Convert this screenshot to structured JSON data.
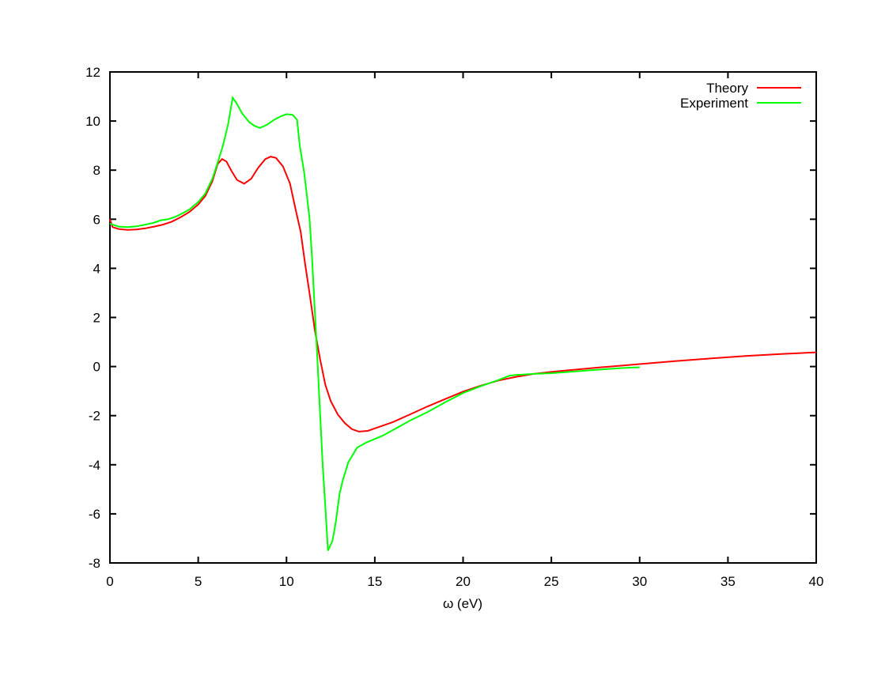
{
  "figure": {
    "background": "#ffffff",
    "border_color": "#000000",
    "tick_color": "#000000"
  },
  "chart_data": {
    "type": "line",
    "title": "",
    "xlabel": "ω (eV)",
    "ylabel": "",
    "xlim": [
      0,
      40
    ],
    "ylim": [
      -8,
      12
    ],
    "xticks": [
      0,
      5,
      10,
      15,
      20,
      25,
      30,
      35,
      40
    ],
    "yticks": [
      -8,
      -6,
      -4,
      -2,
      0,
      2,
      4,
      6,
      8,
      10,
      12
    ],
    "grid": false,
    "legend": {
      "position": "top-right-inside",
      "entries": [
        "Theory",
        "Experiment"
      ]
    },
    "series": [
      {
        "name": "Theory",
        "color": "#ff0000",
        "points": [
          [
            0,
            6.0
          ],
          [
            0.15,
            5.68
          ],
          [
            0.5,
            5.6
          ],
          [
            1,
            5.57
          ],
          [
            1.5,
            5.58
          ],
          [
            2,
            5.63
          ],
          [
            2.5,
            5.7
          ],
          [
            3,
            5.78
          ],
          [
            3.5,
            5.9
          ],
          [
            4,
            6.08
          ],
          [
            4.5,
            6.3
          ],
          [
            5,
            6.6
          ],
          [
            5.4,
            6.95
          ],
          [
            5.8,
            7.55
          ],
          [
            6.1,
            8.25
          ],
          [
            6.35,
            8.45
          ],
          [
            6.6,
            8.35
          ],
          [
            6.9,
            7.95
          ],
          [
            7.2,
            7.6
          ],
          [
            7.6,
            7.45
          ],
          [
            8,
            7.65
          ],
          [
            8.4,
            8.1
          ],
          [
            8.8,
            8.45
          ],
          [
            9.1,
            8.55
          ],
          [
            9.4,
            8.5
          ],
          [
            9.8,
            8.15
          ],
          [
            10.2,
            7.45
          ],
          [
            10.5,
            6.45
          ],
          [
            10.8,
            5.5
          ],
          [
            11.05,
            4.2
          ],
          [
            11.3,
            3.0
          ],
          [
            11.6,
            1.5
          ],
          [
            11.9,
            0.3
          ],
          [
            12.2,
            -0.75
          ],
          [
            12.5,
            -1.4
          ],
          [
            12.9,
            -1.95
          ],
          [
            13.3,
            -2.3
          ],
          [
            13.7,
            -2.55
          ],
          [
            14.1,
            -2.65
          ],
          [
            14.6,
            -2.62
          ],
          [
            15,
            -2.52
          ],
          [
            16,
            -2.27
          ],
          [
            17,
            -1.95
          ],
          [
            18,
            -1.62
          ],
          [
            19,
            -1.32
          ],
          [
            20,
            -1.02
          ],
          [
            21,
            -0.78
          ],
          [
            22,
            -0.57
          ],
          [
            23,
            -0.42
          ],
          [
            24,
            -0.3
          ],
          [
            25,
            -0.22
          ],
          [
            26,
            -0.15
          ],
          [
            28,
            -0.02
          ],
          [
            30,
            0.1
          ],
          [
            32,
            0.22
          ],
          [
            34,
            0.33
          ],
          [
            36,
            0.43
          ],
          [
            38,
            0.51
          ],
          [
            40,
            0.58
          ]
        ]
      },
      {
        "name": "Experiment",
        "color": "#00ff00",
        "points": [
          [
            0,
            5.82
          ],
          [
            0.5,
            5.7
          ],
          [
            1,
            5.68
          ],
          [
            1.5,
            5.71
          ],
          [
            2,
            5.78
          ],
          [
            2.5,
            5.86
          ],
          [
            2.9,
            5.96
          ],
          [
            3.3,
            6.0
          ],
          [
            3.7,
            6.1
          ],
          [
            4,
            6.2
          ],
          [
            4.5,
            6.4
          ],
          [
            5,
            6.7
          ],
          [
            5.4,
            7.05
          ],
          [
            5.8,
            7.65
          ],
          [
            6.1,
            8.3
          ],
          [
            6.4,
            9.0
          ],
          [
            6.7,
            9.9
          ],
          [
            6.95,
            10.95
          ],
          [
            7.15,
            10.75
          ],
          [
            7.5,
            10.3
          ],
          [
            7.9,
            9.95
          ],
          [
            8.2,
            9.8
          ],
          [
            8.5,
            9.72
          ],
          [
            8.9,
            9.85
          ],
          [
            9.3,
            10.05
          ],
          [
            9.7,
            10.2
          ],
          [
            10,
            10.28
          ],
          [
            10.35,
            10.25
          ],
          [
            10.6,
            10.05
          ],
          [
            10.75,
            9.0
          ],
          [
            11,
            7.9
          ],
          [
            11.15,
            7.0
          ],
          [
            11.3,
            6.05
          ],
          [
            11.45,
            4.4
          ],
          [
            11.6,
            2.3
          ],
          [
            11.75,
            0.3
          ],
          [
            11.9,
            -1.9
          ],
          [
            12.05,
            -4.0
          ],
          [
            12.2,
            -5.75
          ],
          [
            12.35,
            -7.5
          ],
          [
            12.6,
            -7.1
          ],
          [
            12.8,
            -6.3
          ],
          [
            13,
            -5.2
          ],
          [
            13.2,
            -4.6
          ],
          [
            13.5,
            -3.9
          ],
          [
            14,
            -3.3
          ],
          [
            14.5,
            -3.1
          ],
          [
            15,
            -2.95
          ],
          [
            15.5,
            -2.8
          ],
          [
            16,
            -2.6
          ],
          [
            17,
            -2.2
          ],
          [
            18,
            -1.85
          ],
          [
            19,
            -1.45
          ],
          [
            20,
            -1.08
          ],
          [
            21,
            -0.8
          ],
          [
            22,
            -0.55
          ],
          [
            22.6,
            -0.38
          ],
          [
            23,
            -0.34
          ],
          [
            24,
            -0.3
          ],
          [
            25,
            -0.27
          ],
          [
            26,
            -0.22
          ],
          [
            27,
            -0.16
          ],
          [
            28,
            -0.11
          ],
          [
            29,
            -0.06
          ],
          [
            30,
            -0.03
          ]
        ]
      }
    ]
  }
}
